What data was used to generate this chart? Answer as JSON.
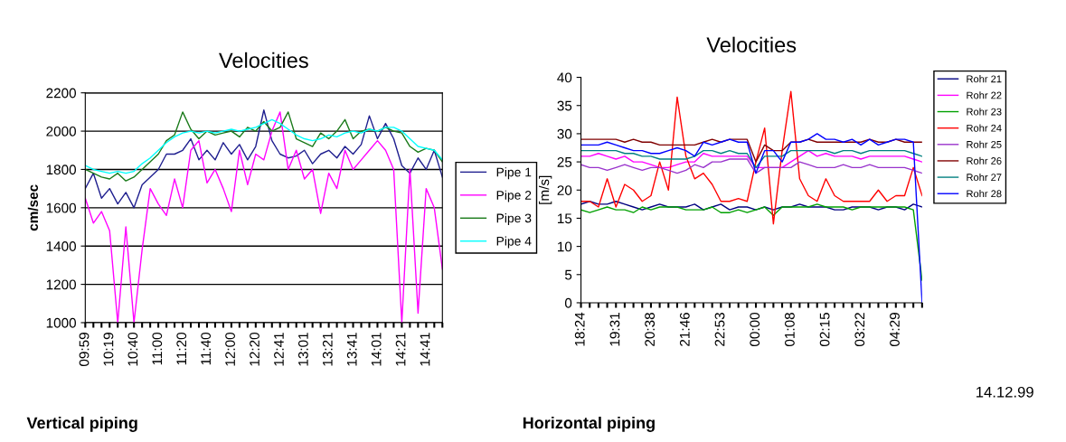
{
  "chart_data": [
    {
      "type": "line",
      "title": "Velocities",
      "ylabel": "cm/sec",
      "ylim": [
        1000,
        2200
      ],
      "yticks": [
        1000,
        1200,
        1400,
        1600,
        1800,
        2000,
        2200
      ],
      "grid": "y",
      "legend": "right",
      "marker": "none",
      "line_style": "solid",
      "annotations": [
        "Vertical piping"
      ],
      "categories": [
        "09:59",
        null,
        null,
        "10:19",
        null,
        null,
        "10:40",
        null,
        null,
        "11:00",
        null,
        null,
        "11:20",
        null,
        null,
        "11:40",
        null,
        null,
        "12:00",
        null,
        null,
        "12:20",
        null,
        null,
        "12:41",
        null,
        null,
        "13:01",
        null,
        null,
        "13:21",
        null,
        null,
        "13:41",
        null,
        null,
        "14:01",
        null,
        null,
        "14:21",
        null,
        null,
        "14:41",
        null,
        null
      ],
      "series": [
        {
          "name": "Pipe 1",
          "color": "#1f1f8f",
          "values": [
            1700,
            1780,
            1650,
            1700,
            1620,
            1680,
            1600,
            1720,
            1760,
            1800,
            1880,
            1880,
            1900,
            1960,
            1850,
            1900,
            1850,
            1940,
            1880,
            1930,
            1850,
            1920,
            2110,
            1950,
            1880,
            1860,
            1870,
            1900,
            1830,
            1880,
            1900,
            1860,
            1920,
            1880,
            1930,
            2080,
            1960,
            2040,
            1960,
            1820,
            1780,
            1860,
            1800,
            1900,
            1760
          ]
        },
        {
          "name": "Pipe 2",
          "color": "#ff00ff",
          "values": [
            1650,
            1520,
            1580,
            1480,
            1000,
            1500,
            1000,
            1380,
            1700,
            1620,
            1560,
            1750,
            1600,
            1900,
            1950,
            1730,
            1800,
            1700,
            1580,
            1900,
            1720,
            1880,
            1850,
            2000,
            2100,
            1800,
            1900,
            1750,
            1800,
            1570,
            1780,
            1700,
            1900,
            1800,
            1850,
            1900,
            1950,
            1900,
            1800,
            1000,
            1800,
            1050,
            1700,
            1600,
            1280
          ]
        },
        {
          "name": "Pipe 3",
          "color": "#1a7a1a",
          "values": [
            1800,
            1780,
            1760,
            1750,
            1780,
            1740,
            1760,
            1800,
            1840,
            1880,
            1950,
            1980,
            2100,
            2010,
            1960,
            2000,
            1980,
            1990,
            2000,
            1970,
            2020,
            2000,
            2050,
            2000,
            2020,
            2100,
            1960,
            1940,
            1920,
            1990,
            1960,
            2000,
            2060,
            1960,
            2000,
            2010,
            2000,
            2020,
            2000,
            1990,
            1920,
            1890,
            1910,
            1900,
            1840
          ]
        },
        {
          "name": "Pipe 4",
          "color": "#00ffff",
          "values": [
            1820,
            1800,
            1790,
            1780,
            1790,
            1780,
            1790,
            1830,
            1860,
            1900,
            1940,
            1970,
            1990,
            2000,
            1990,
            2000,
            1990,
            2000,
            2010,
            2000,
            2010,
            2020,
            2040,
            2060,
            2040,
            2010,
            1980,
            1960,
            1950,
            1960,
            1980,
            1970,
            1990,
            2000,
            1990,
            2010,
            2000,
            2020,
            2020,
            2000,
            1960,
            1920,
            1910,
            1900,
            1850
          ]
        }
      ]
    },
    {
      "type": "line",
      "title": "Velocities",
      "ylabel": "[m/s]",
      "ylim": [
        0,
        40
      ],
      "yticks": [
        0,
        5,
        10,
        15,
        20,
        25,
        30,
        35,
        40
      ],
      "legend": "right",
      "marker": "none",
      "line_style": "solid",
      "annotations": [
        "14.12.99",
        "Horizontal piping"
      ],
      "categories": [
        "18:24",
        null,
        null,
        null,
        "19:31",
        null,
        null,
        null,
        "20:38",
        null,
        null,
        null,
        "21:46",
        null,
        null,
        null,
        "22:53",
        null,
        null,
        null,
        "00:00",
        null,
        null,
        null,
        "01:08",
        null,
        null,
        null,
        "02:15",
        null,
        null,
        null,
        "03:22",
        null,
        null,
        null,
        "04:29",
        null,
        null,
        null
      ],
      "series": [
        {
          "name": "Rohr 21",
          "color": "#000080",
          "values": [
            17.5,
            18,
            17.5,
            17.5,
            18,
            17.5,
            17,
            16.5,
            17,
            17.5,
            17,
            17,
            17,
            17.5,
            16.5,
            17,
            17.5,
            16.5,
            17,
            17,
            16.5,
            17,
            16.5,
            17,
            17,
            17.5,
            17,
            17,
            17,
            16.5,
            16.5,
            17,
            17,
            17,
            16.5,
            17,
            17,
            16.5,
            17.5,
            17
          ]
        },
        {
          "name": "Rohr 22",
          "color": "#ff00ff",
          "values": [
            26,
            26,
            26.5,
            26,
            25.5,
            26,
            25,
            25,
            24.5,
            24,
            24,
            24.5,
            25,
            25,
            26.5,
            26,
            26,
            26,
            26,
            26,
            24,
            24,
            24,
            24,
            25,
            26,
            27,
            26,
            26.5,
            26,
            26,
            26,
            25.5,
            26,
            26,
            26,
            26,
            26,
            25.5,
            25
          ]
        },
        {
          "name": "Rohr 23",
          "color": "#00a000",
          "values": [
            16.5,
            16,
            16.5,
            17,
            16.5,
            16.5,
            16,
            17,
            16.5,
            17,
            17,
            17,
            16.5,
            16.5,
            16.5,
            17,
            16,
            16,
            16.5,
            16,
            16.5,
            17,
            15.5,
            17,
            17,
            17,
            17,
            17.5,
            17,
            17,
            17,
            16.5,
            17,
            17,
            17,
            17,
            17,
            17,
            16.5,
            4
          ]
        },
        {
          "name": "Rohr 24",
          "color": "#ff0000",
          "values": [
            18,
            18,
            17,
            22,
            17,
            21,
            20,
            18,
            19,
            25,
            20,
            36.5,
            26,
            22,
            23,
            21,
            18,
            18,
            18.5,
            18,
            25,
            31,
            14,
            27,
            37.5,
            22,
            19,
            18,
            22,
            19,
            18,
            18,
            18,
            18,
            20,
            18,
            19,
            19,
            24,
            19
          ]
        },
        {
          "name": "Rohr 25",
          "color": "#9933cc",
          "values": [
            24.5,
            24,
            24,
            23.5,
            24,
            24.5,
            24,
            23.5,
            24,
            24,
            23.5,
            23,
            23.5,
            24.5,
            24,
            25,
            25,
            25.5,
            25.5,
            25.5,
            23,
            24,
            24,
            24,
            24,
            25,
            24.5,
            24,
            24,
            24,
            24.5,
            24,
            24,
            24.5,
            24,
            24,
            24,
            24,
            23.5,
            23
          ]
        },
        {
          "name": "Rohr 26",
          "color": "#800000",
          "values": [
            29,
            29,
            29,
            29,
            29,
            28.5,
            29,
            28.5,
            28.5,
            28,
            28,
            28,
            28,
            28,
            28.5,
            29,
            28.5,
            29,
            29,
            29,
            25,
            28,
            27,
            27,
            28.5,
            28.5,
            29,
            28.5,
            28.5,
            28.5,
            28.5,
            28.5,
            28.5,
            29,
            28.5,
            28.5,
            29,
            28.5,
            28.5,
            28.5
          ]
        },
        {
          "name": "Rohr 27",
          "color": "#008080",
          "values": [
            27,
            27,
            27,
            27,
            27,
            26.5,
            26.5,
            26,
            26,
            25.5,
            25.5,
            25.5,
            25.5,
            26,
            27,
            27,
            26.5,
            27,
            26.5,
            26.5,
            24,
            26,
            26,
            26,
            27,
            27,
            27,
            27,
            27,
            26.5,
            27,
            27,
            26.5,
            27,
            27,
            27,
            27,
            27,
            26.5,
            26
          ]
        },
        {
          "name": "Rohr 28",
          "color": "#0000ff",
          "values": [
            28,
            28,
            28,
            28.5,
            28,
            27.5,
            27,
            27,
            26.5,
            26.5,
            27,
            27.5,
            27,
            26,
            28.5,
            28,
            28.5,
            29,
            28.5,
            28.5,
            23,
            27,
            27,
            25,
            28.5,
            28.5,
            29,
            30,
            29,
            29,
            28.5,
            29,
            28,
            29,
            28,
            28.5,
            29,
            29,
            28.5,
            0
          ]
        }
      ]
    }
  ]
}
